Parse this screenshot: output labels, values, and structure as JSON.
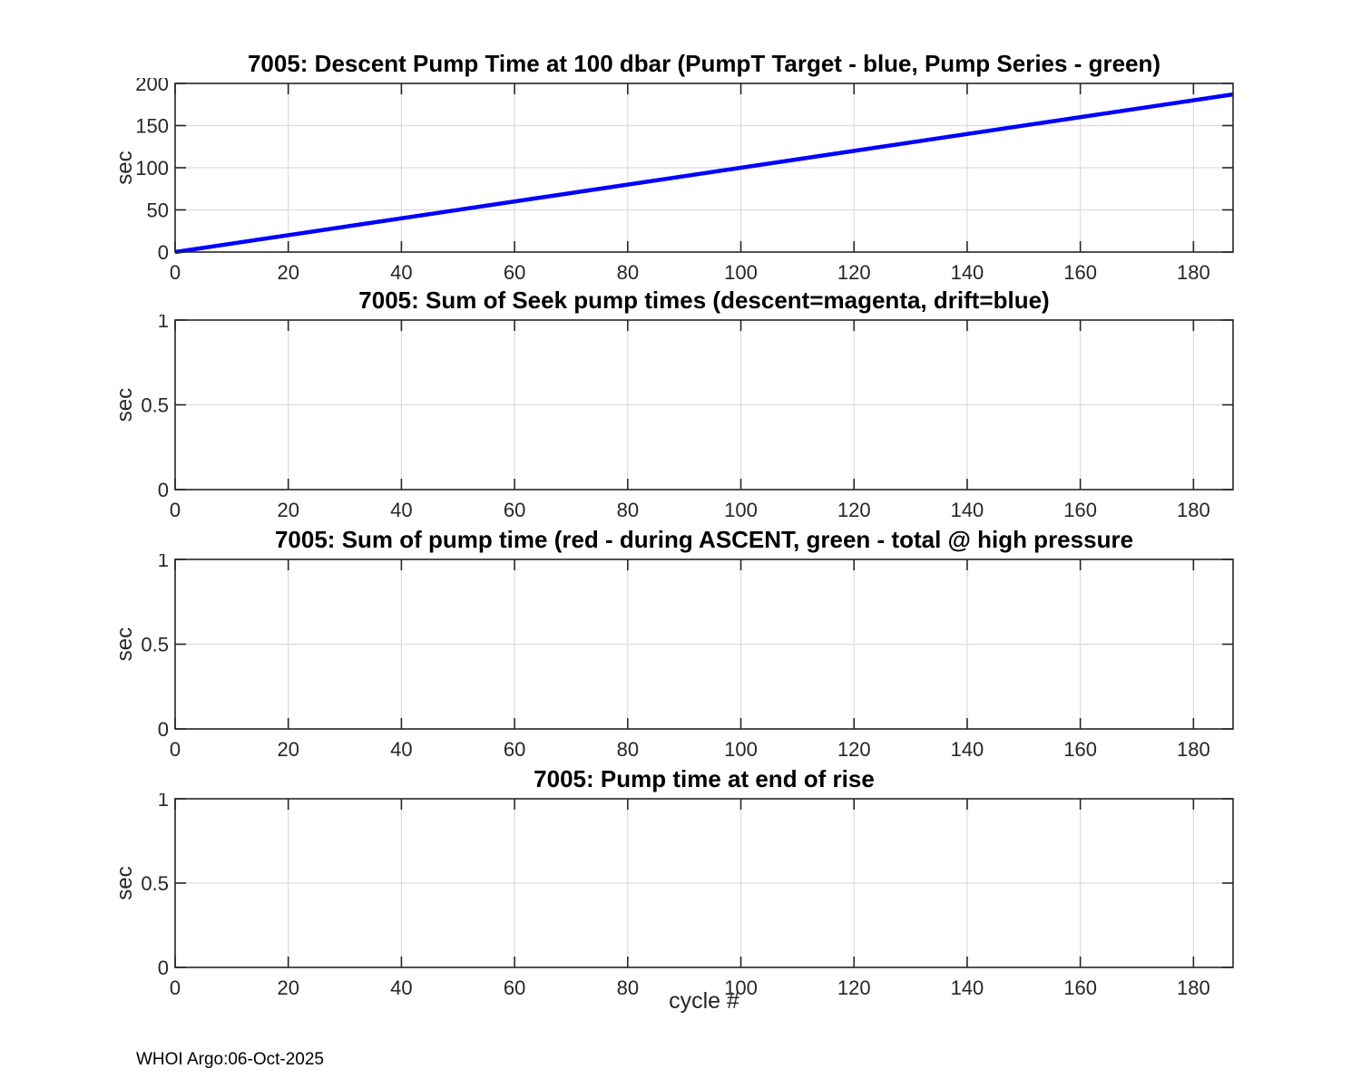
{
  "figure": {
    "footer": "WHOI Argo:06-Oct-2025",
    "xlabel": "cycle #",
    "background_color": "#ffffff",
    "axis_color": "#262626",
    "grid_color": "#dcdcdc",
    "title_color": "#000000"
  },
  "chart_data": [
    {
      "type": "line",
      "title": "7005: Descent Pump Time at 100 dbar (PumpT Target - blue, Pump Series - green)",
      "ylabel": "sec",
      "xlim": [
        0,
        187
      ],
      "ylim": [
        0,
        200
      ],
      "xticks": [
        0,
        20,
        40,
        60,
        80,
        100,
        120,
        140,
        160,
        180
      ],
      "yticks": [
        0,
        50,
        100,
        150,
        200
      ],
      "grid": true,
      "legend_position": "none",
      "series": [
        {
          "name": "PumpT Target (blue)",
          "color": "#0000ff",
          "line_width": 4.5,
          "x": [
            0,
            187
          ],
          "y": [
            0,
            187
          ]
        }
      ]
    },
    {
      "type": "line",
      "title": "7005: Sum of Seek pump times (descent=magenta, drift=blue)",
      "ylabel": "sec",
      "xlim": [
        0,
        187
      ],
      "ylim": [
        0,
        1
      ],
      "xticks": [
        0,
        20,
        40,
        60,
        80,
        100,
        120,
        140,
        160,
        180
      ],
      "yticks": [
        0,
        0.5,
        1
      ],
      "grid": true,
      "legend_position": "none",
      "series": []
    },
    {
      "type": "line",
      "title": "7005: Sum of pump time (red - during ASCENT, green - total @ high pressure",
      "ylabel": "sec",
      "xlim": [
        0,
        187
      ],
      "ylim": [
        0,
        1
      ],
      "xticks": [
        0,
        20,
        40,
        60,
        80,
        100,
        120,
        140,
        160,
        180
      ],
      "yticks": [
        0,
        0.5,
        1
      ],
      "grid": true,
      "legend_position": "none",
      "series": []
    },
    {
      "type": "line",
      "title": "7005: Pump time at end of rise",
      "ylabel": "sec",
      "xlabel": "cycle #",
      "xlim": [
        0,
        187
      ],
      "ylim": [
        0,
        1
      ],
      "xticks": [
        0,
        20,
        40,
        60,
        80,
        100,
        120,
        140,
        160,
        180
      ],
      "yticks": [
        0,
        0.5,
        1
      ],
      "grid": true,
      "legend_position": "none",
      "series": []
    }
  ]
}
